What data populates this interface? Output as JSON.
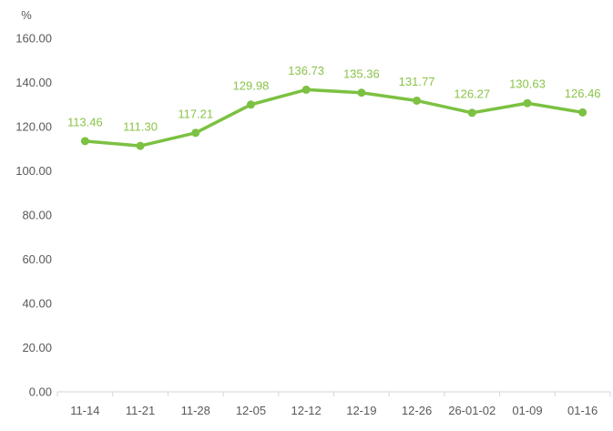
{
  "chart_data": {
    "type": "line",
    "title": "",
    "unit_label": "%",
    "categories": [
      "11-14",
      "11-21",
      "11-28",
      "12-05",
      "12-12",
      "12-19",
      "12-26",
      "26-01-02",
      "01-09",
      "01-16"
    ],
    "series": [
      {
        "name": "ratio",
        "values": [
          113.46,
          111.3,
          117.21,
          129.98,
          136.73,
          135.36,
          131.77,
          126.27,
          130.63,
          126.46
        ],
        "data_labels": [
          "113.46",
          "111.30",
          "117.21",
          "129.98",
          "136.73",
          "135.36",
          "131.77",
          "126.27",
          "130.63",
          "126.46"
        ]
      }
    ],
    "xlabel": "",
    "ylabel": "%",
    "ylim": [
      0,
      160
    ],
    "ytick_step": 20,
    "ytick_labels": [
      "0.00",
      "20.00",
      "40.00",
      "60.00",
      "80.00",
      "100.00",
      "120.00",
      "140.00",
      "160.00"
    ],
    "grid": false,
    "legend_position": "none",
    "colors": {
      "line": "#7cc142",
      "marker": "#7cc142",
      "data_label": "#8bc34a",
      "axis_line": "#d6d6d6",
      "axis_text": "#595959",
      "background": "#ffffff"
    }
  }
}
